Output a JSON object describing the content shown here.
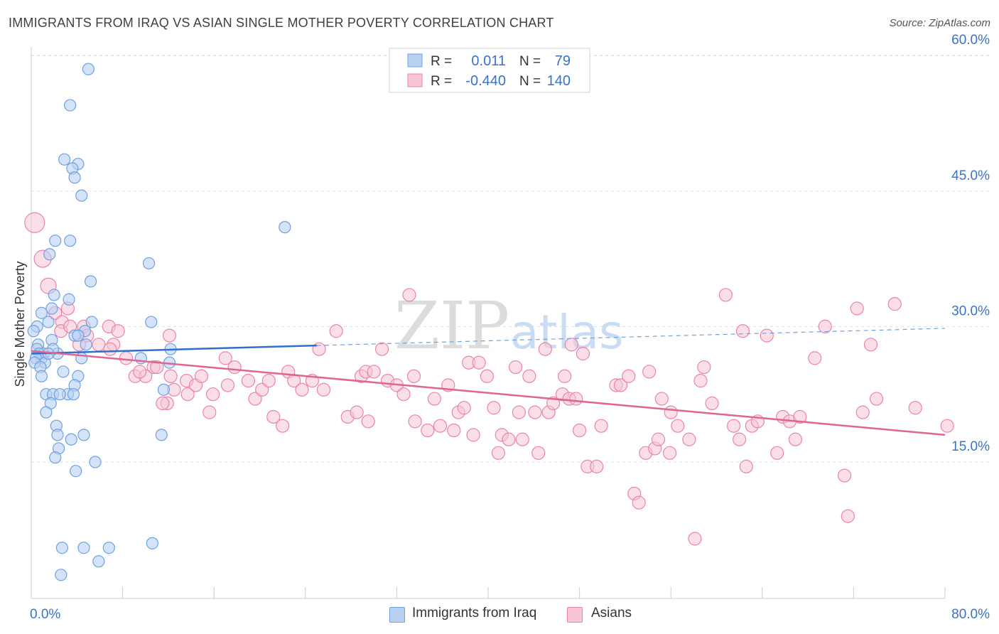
{
  "title": "IMMIGRANTS FROM IRAQ VS ASIAN SINGLE MOTHER POVERTY CORRELATION CHART",
  "source": "Source: ZipAtlas.com",
  "colors": {
    "blue": "#6fa1e0",
    "blue_fill": "#b8d1f1",
    "blue_line": "#2f6fd0",
    "pink": "#ea84a8",
    "pink_fill": "#f6c5d6",
    "pink_line": "#e0658f",
    "axis_label": "#3a72c9",
    "grid": "#d8dde3"
  },
  "legend": {
    "rows": [
      {
        "r_label": "R =",
        "r_value": "0.011",
        "n_label": "N =",
        "n_value": "79"
      },
      {
        "r_label": "R =",
        "r_value": "-0.440",
        "n_label": "N =",
        "n_value": "140"
      }
    ]
  },
  "bottom_legend": {
    "series1": "Immigrants from Iraq",
    "series2": "Asians"
  },
  "watermark": {
    "zip": "ZIP",
    "atlas": "atlas"
  },
  "chart_data": {
    "type": "scatter",
    "xlabel": "",
    "ylabel": "Single Mother Poverty",
    "xlim": [
      0,
      80
    ],
    "ylim": [
      0,
      62
    ],
    "x_tick_labels": [
      "0.0%",
      "80.0%"
    ],
    "y_tick_labels": [
      "15.0%",
      "30.0%",
      "45.0%",
      "60.0%"
    ],
    "y_ticks": [
      15,
      30,
      45,
      60
    ],
    "series": [
      {
        "name": "Immigrants from Iraq",
        "R": 0.011,
        "N": 79,
        "trend": {
          "x0": 0,
          "y0": 27.0,
          "x1": 25,
          "y1": 27.9,
          "dashed_to_x": 80,
          "dashed_to_y": 29.8
        },
        "points": [
          [
            5.0,
            58.5
          ],
          [
            3.4,
            54.5
          ],
          [
            2.9,
            48.5
          ],
          [
            4.1,
            48.0
          ],
          [
            3.6,
            47.5
          ],
          [
            3.8,
            46.5
          ],
          [
            4.4,
            44.5
          ],
          [
            22.2,
            41.0
          ],
          [
            3.4,
            39.5
          ],
          [
            2.1,
            39.5
          ],
          [
            1.6,
            38.0
          ],
          [
            10.3,
            37.0
          ],
          [
            5.2,
            35.0
          ],
          [
            2.0,
            33.5
          ],
          [
            3.3,
            33.0
          ],
          [
            1.8,
            32.0
          ],
          [
            0.9,
            31.5
          ],
          [
            1.5,
            30.5
          ],
          [
            10.5,
            30.5
          ],
          [
            5.3,
            30.5
          ],
          [
            0.5,
            30.0
          ],
          [
            4.7,
            29.5
          ],
          [
            0.2,
            29.5
          ],
          [
            3.8,
            29.0
          ],
          [
            4.1,
            29.0
          ],
          [
            1.8,
            28.5
          ],
          [
            0.6,
            28.0
          ],
          [
            0.5,
            27.5
          ],
          [
            1.1,
            27.0
          ],
          [
            0.7,
            27.0
          ],
          [
            2.3,
            27.0
          ],
          [
            12.2,
            27.5
          ],
          [
            4.8,
            28.0
          ],
          [
            0.9,
            26.5
          ],
          [
            0.4,
            26.5
          ],
          [
            9.6,
            26.5
          ],
          [
            4.4,
            26.5
          ],
          [
            1.2,
            26.0
          ],
          [
            12.1,
            26.0
          ],
          [
            0.3,
            26.0
          ],
          [
            0.8,
            25.5
          ],
          [
            1.9,
            27.5
          ],
          [
            1.5,
            27.0
          ],
          [
            2.8,
            25.0
          ],
          [
            4.1,
            24.5
          ],
          [
            0.9,
            24.5
          ],
          [
            3.8,
            23.5
          ],
          [
            11.6,
            23.0
          ],
          [
            1.3,
            22.5
          ],
          [
            1.9,
            22.5
          ],
          [
            3.2,
            22.5
          ],
          [
            3.7,
            22.5
          ],
          [
            2.5,
            22.5
          ],
          [
            1.7,
            21.5
          ],
          [
            1.3,
            20.5
          ],
          [
            2.2,
            19.0
          ],
          [
            2.3,
            18.0
          ],
          [
            4.6,
            18.0
          ],
          [
            11.4,
            18.0
          ],
          [
            3.5,
            17.5
          ],
          [
            2.4,
            16.5
          ],
          [
            2.1,
            15.5
          ],
          [
            5.6,
            15.0
          ],
          [
            3.9,
            14.0
          ],
          [
            10.6,
            6.0
          ],
          [
            6.8,
            5.5
          ],
          [
            2.7,
            5.5
          ],
          [
            4.6,
            5.5
          ],
          [
            5.9,
            4.0
          ],
          [
            2.6,
            2.5
          ]
        ]
      },
      {
        "name": "Asians",
        "R": -0.44,
        "N": 140,
        "trend": {
          "x0": 0,
          "y0": 27.3,
          "x1": 80,
          "y1": 18.0
        },
        "points": [
          [
            0.3,
            41.5
          ],
          [
            1.0,
            37.5
          ],
          [
            1.5,
            34.5
          ],
          [
            2.1,
            31.5
          ],
          [
            3.2,
            32.0
          ],
          [
            2.7,
            30.5
          ],
          [
            4.6,
            30.0
          ],
          [
            2.6,
            29.5
          ],
          [
            3.4,
            30.0
          ],
          [
            4.9,
            29.0
          ],
          [
            6.8,
            30.0
          ],
          [
            7.6,
            29.5
          ],
          [
            7.2,
            28.0
          ],
          [
            4.2,
            28.0
          ],
          [
            12.1,
            29.0
          ],
          [
            5.9,
            28.0
          ],
          [
            6.9,
            27.5
          ],
          [
            8.3,
            26.5
          ],
          [
            10.7,
            25.5
          ],
          [
            9.1,
            24.5
          ],
          [
            10.0,
            24.5
          ],
          [
            11.0,
            25.5
          ],
          [
            11.9,
            21.5
          ],
          [
            12.2,
            24.5
          ],
          [
            12.5,
            23.0
          ],
          [
            13.6,
            24.0
          ],
          [
            13.7,
            22.5
          ],
          [
            14.4,
            23.5
          ],
          [
            14.9,
            24.5
          ],
          [
            15.6,
            20.5
          ],
          [
            15.9,
            22.5
          ],
          [
            17.0,
            26.5
          ],
          [
            17.2,
            23.5
          ],
          [
            17.8,
            25.5
          ],
          [
            19.0,
            24.0
          ],
          [
            19.6,
            22.0
          ],
          [
            20.2,
            23.0
          ],
          [
            20.8,
            24.0
          ],
          [
            21.2,
            20.0
          ],
          [
            22.0,
            19.0
          ],
          [
            22.5,
            25.0
          ],
          [
            23.0,
            24.0
          ],
          [
            23.7,
            23.0
          ],
          [
            24.6,
            24.0
          ],
          [
            25.2,
            27.5
          ],
          [
            25.6,
            23.0
          ],
          [
            26.7,
            29.5
          ],
          [
            27.7,
            20.0
          ],
          [
            28.5,
            20.5
          ],
          [
            28.9,
            24.5
          ],
          [
            29.3,
            25.0
          ],
          [
            29.5,
            19.5
          ],
          [
            30.0,
            25.0
          ],
          [
            30.7,
            27.5
          ],
          [
            31.2,
            24.0
          ],
          [
            32.0,
            23.5
          ],
          [
            32.6,
            22.5
          ],
          [
            33.1,
            33.5
          ],
          [
            33.5,
            24.5
          ],
          [
            33.6,
            19.5
          ],
          [
            34.7,
            18.5
          ],
          [
            35.3,
            22.0
          ],
          [
            35.8,
            19.0
          ],
          [
            36.5,
            23.5
          ],
          [
            37.0,
            18.5
          ],
          [
            37.4,
            20.5
          ],
          [
            37.9,
            21.0
          ],
          [
            38.3,
            26.0
          ],
          [
            38.7,
            18.0
          ],
          [
            39.2,
            26.0
          ],
          [
            39.9,
            24.5
          ],
          [
            40.5,
            21.0
          ],
          [
            40.9,
            16.0
          ],
          [
            41.2,
            18.0
          ],
          [
            41.8,
            17.5
          ],
          [
            42.4,
            25.5
          ],
          [
            42.7,
            20.5
          ],
          [
            43.0,
            17.5
          ],
          [
            43.6,
            24.5
          ],
          [
            44.1,
            20.5
          ],
          [
            44.4,
            16.0
          ],
          [
            45.0,
            27.5
          ],
          [
            45.3,
            20.5
          ],
          [
            45.7,
            21.5
          ],
          [
            46.5,
            22.5
          ],
          [
            46.7,
            24.5
          ],
          [
            47.1,
            22.0
          ],
          [
            47.3,
            28.0
          ],
          [
            47.7,
            22.0
          ],
          [
            48.0,
            18.5
          ],
          [
            48.3,
            27.0
          ],
          [
            48.7,
            14.5
          ],
          [
            49.5,
            14.5
          ],
          [
            49.9,
            19.0
          ],
          [
            51.2,
            23.5
          ],
          [
            51.6,
            23.5
          ],
          [
            52.3,
            24.5
          ],
          [
            52.8,
            11.5
          ],
          [
            53.2,
            10.5
          ],
          [
            53.8,
            16.0
          ],
          [
            54.1,
            25.0
          ],
          [
            54.6,
            16.5
          ],
          [
            54.9,
            17.5
          ],
          [
            55.2,
            22.0
          ],
          [
            55.9,
            16.0
          ],
          [
            56.0,
            20.5
          ],
          [
            56.6,
            19.0
          ],
          [
            57.6,
            17.5
          ],
          [
            58.1,
            6.5
          ],
          [
            58.6,
            24.0
          ],
          [
            58.9,
            25.5
          ],
          [
            59.6,
            21.5
          ],
          [
            60.8,
            33.5
          ],
          [
            61.5,
            19.0
          ],
          [
            62.0,
            17.5
          ],
          [
            62.3,
            29.5
          ],
          [
            62.6,
            14.5
          ],
          [
            63.1,
            19.0
          ],
          [
            63.6,
            19.5
          ],
          [
            64.4,
            29.0
          ],
          [
            65.3,
            16.0
          ],
          [
            65.8,
            20.0
          ],
          [
            66.4,
            19.5
          ],
          [
            66.9,
            17.5
          ],
          [
            67.3,
            20.0
          ],
          [
            68.6,
            26.5
          ],
          [
            69.5,
            30.0
          ],
          [
            71.2,
            13.5
          ],
          [
            71.5,
            9.0
          ],
          [
            72.3,
            32.0
          ],
          [
            72.8,
            20.5
          ],
          [
            73.5,
            28.0
          ],
          [
            74.0,
            22.0
          ],
          [
            75.6,
            32.5
          ],
          [
            77.4,
            21.0
          ],
          [
            80.2,
            19.0
          ],
          [
            11.5,
            21.5
          ],
          [
            9.5,
            25.0
          ]
        ]
      }
    ]
  }
}
